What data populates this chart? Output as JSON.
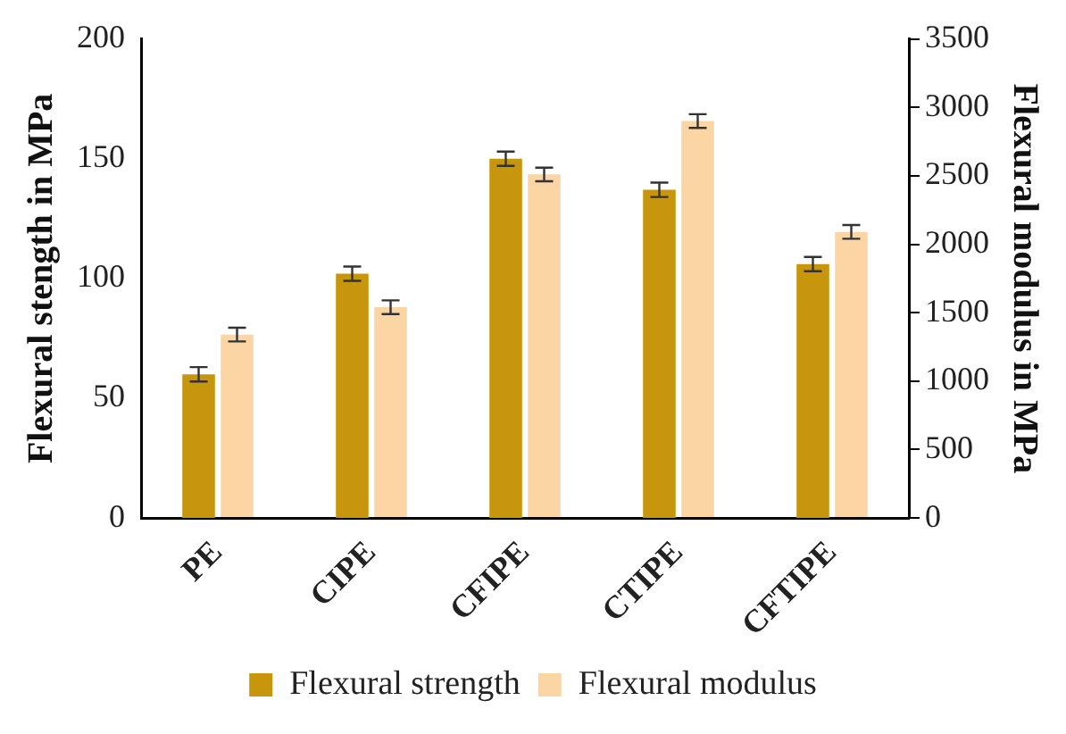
{
  "chart_data": {
    "type": "bar",
    "ylabel": "Flexural stength in MPa",
    "y2label": "Flexural modulus in MPa",
    "categories": [
      "PE",
      "CIPE",
      "CFIPE",
      "CTIPE",
      "CFTIPE"
    ],
    "series": [
      {
        "name": "Flexural strength",
        "color": "#c8960c",
        "values": [
          60,
          102,
          150,
          137,
          106
        ],
        "errors": [
          3,
          3,
          3,
          3,
          3
        ]
      },
      {
        "name": "Flexural modulus",
        "color": "#fcd5a5",
        "axis": "y2",
        "values": [
          1340,
          1540,
          2510,
          2900,
          2090
        ],
        "errors": [
          50,
          50,
          50,
          50,
          50
        ]
      }
    ],
    "ylim": [
      0,
      200
    ],
    "yticks": [
      0,
      50,
      100,
      150,
      200
    ],
    "y2lim": [
      0,
      3500
    ],
    "y2ticks": [
      0,
      500,
      1000,
      1500,
      2000,
      2500,
      3000,
      3500
    ],
    "grid": false,
    "legend": "bottom"
  }
}
